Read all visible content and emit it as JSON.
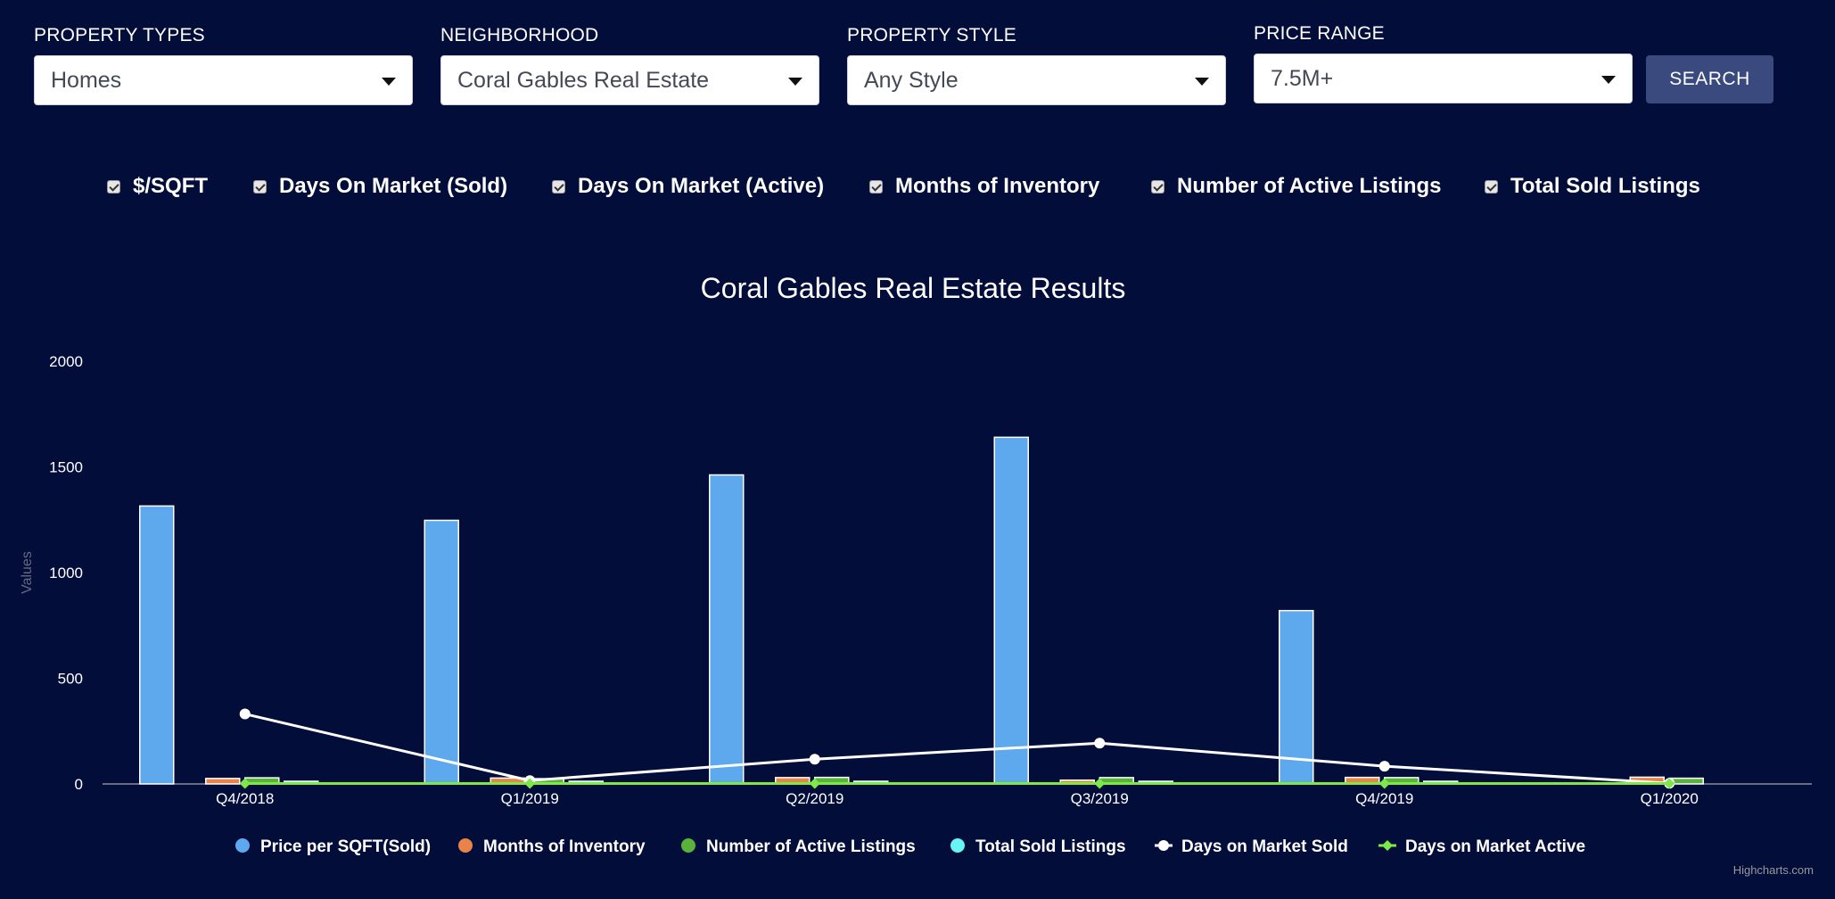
{
  "filters": {
    "property_types": {
      "label": "PROPERTY TYPES",
      "value": "Homes"
    },
    "neighborhood": {
      "label": "NEIGHBORHOOD",
      "value": "Coral Gables Real Estate"
    },
    "property_style": {
      "label": "PROPERTY STYLE",
      "value": "Any Style"
    },
    "price_range": {
      "label": "PRICE RANGE",
      "value": "7.5M+"
    },
    "search_label": "SEARCH"
  },
  "toggles": [
    {
      "label": "$/SQFT",
      "checked": true
    },
    {
      "label": "Days On Market (Sold)",
      "checked": true
    },
    {
      "label": "Days On Market (Active)",
      "checked": true
    },
    {
      "label": "Months of Inventory",
      "checked": true
    },
    {
      "label": "Number of Active Listings",
      "checked": true
    },
    {
      "label": "Total Sold Listings",
      "checked": true
    }
  ],
  "credit": "Highcharts.com",
  "chart_data": {
    "type": "bar",
    "title": "Coral Gables Real Estate Results",
    "ylabel": "Values",
    "ylim": [
      0,
      2000
    ],
    "yticks": [
      "0",
      "500",
      "1000",
      "1500",
      "2000"
    ],
    "categories": [
      "Q4/2018",
      "Q1/2019",
      "Q2/2019",
      "Q3/2019",
      "Q4/2019",
      "Q1/2020"
    ],
    "legend_position": "bottom-center",
    "grid": false,
    "series": [
      {
        "name": "Price per SQFT(Sold)",
        "type": "column",
        "color": "#5ea9ee",
        "values": [
          1315,
          1247,
          1462,
          1640,
          820,
          0
        ]
      },
      {
        "name": "Months of Inventory",
        "type": "column",
        "color": "#e8844a",
        "values": [
          26,
          28,
          30,
          18,
          31,
          32
        ]
      },
      {
        "name": "Number of Active Listings",
        "type": "column",
        "color": "#59b23c",
        "values": [
          29,
          25,
          31,
          30,
          30,
          27
        ]
      },
      {
        "name": "Total Sold Listings",
        "type": "column",
        "color": "#66f5f2",
        "values": [
          1,
          1,
          1,
          1,
          1,
          0
        ]
      },
      {
        "name": "Days on Market Sold",
        "type": "line",
        "color": "#ffffff",
        "values": [
          331,
          16,
          117,
          193,
          84,
          3
        ]
      },
      {
        "name": "Days on Market Active",
        "type": "line",
        "color": "#7de84a",
        "values": [
          2,
          2,
          2,
          2,
          2,
          2
        ]
      }
    ]
  }
}
